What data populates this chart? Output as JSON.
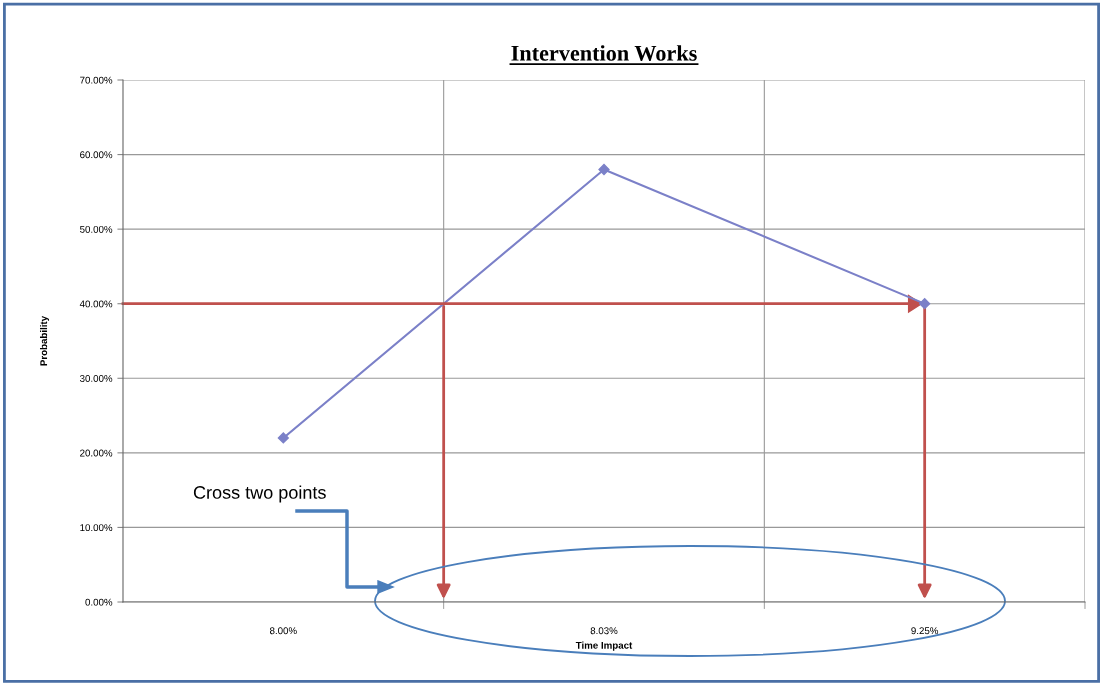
{
  "chart_data": {
    "type": "line",
    "title": "Intervention Works",
    "xlabel": "Time Impact",
    "ylabel": "Probability",
    "categories": [
      "8.00%",
      "8.03%",
      "9.25%"
    ],
    "series": [
      {
        "color": "#7b80c8",
        "values": [
          22,
          58,
          40
        ]
      }
    ],
    "ylim": [
      0,
      70
    ],
    "yticks": [
      {
        "value": 0,
        "label": "0.00%"
      },
      {
        "value": 10,
        "label": "10.00%"
      },
      {
        "value": 20,
        "label": "20.00%"
      },
      {
        "value": 30,
        "label": "30.00%"
      },
      {
        "value": 40,
        "label": "40.00%"
      },
      {
        "value": 50,
        "label": "50.00%"
      },
      {
        "value": 60,
        "label": "60.00%"
      },
      {
        "value": 70,
        "label": "70.00%"
      }
    ],
    "ref_lines": [
      {
        "axis": "y",
        "value": 40,
        "color": "#c0504d"
      }
    ],
    "grid": true,
    "marker": "diamond",
    "line_style": "solid",
    "annotations": [
      "Cross two points"
    ]
  }
}
